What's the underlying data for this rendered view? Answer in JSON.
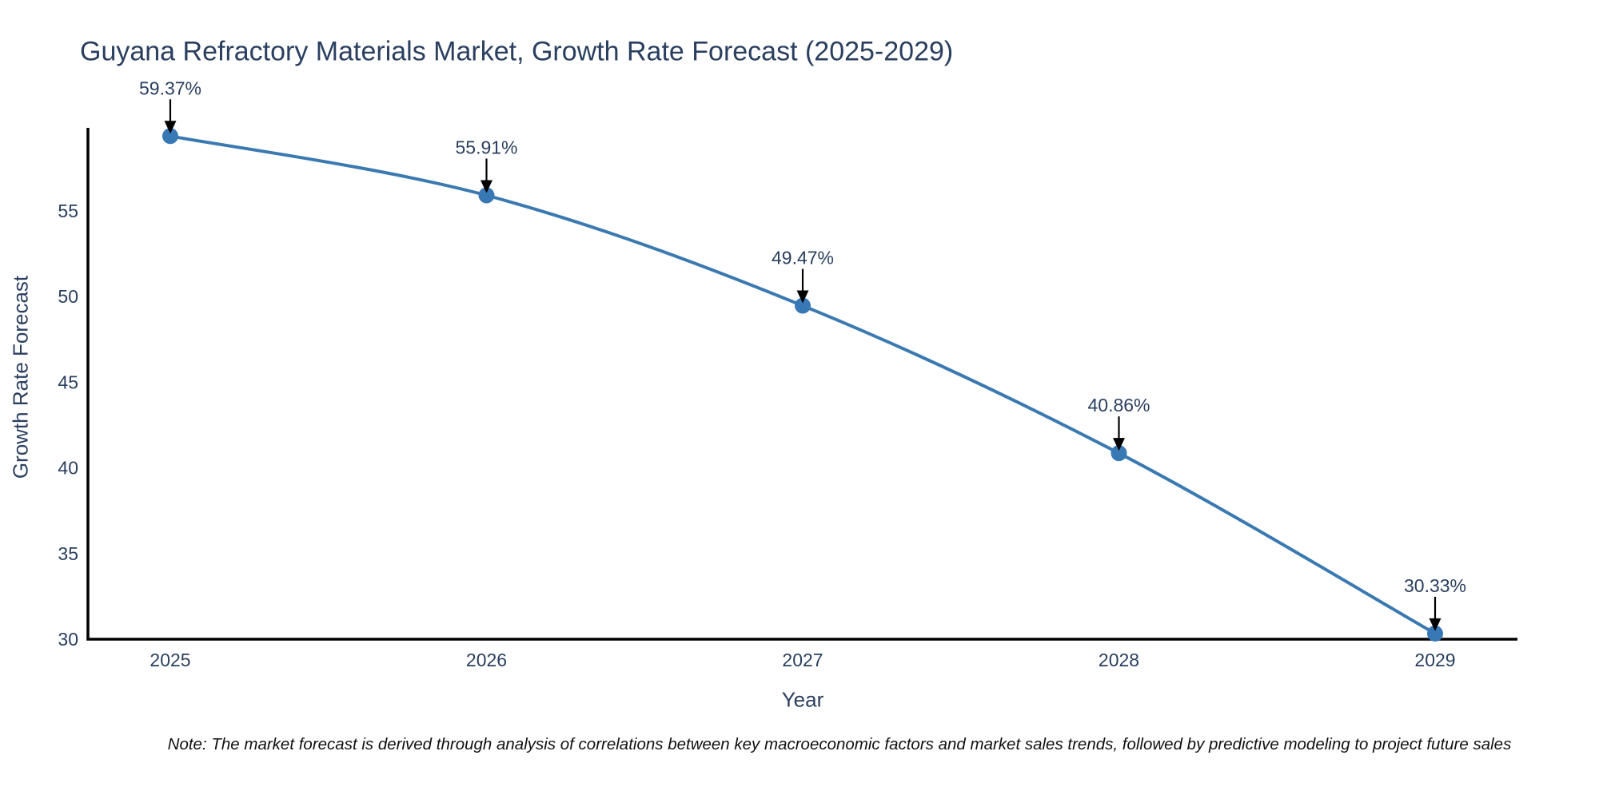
{
  "chart_data": {
    "type": "line",
    "title": "Guyana Refractory Materials Market, Growth Rate Forecast (2025-2029)",
    "xlabel": "Year",
    "ylabel": "Growth Rate Forecast",
    "x": [
      2025,
      2026,
      2027,
      2028,
      2029
    ],
    "series": [
      {
        "name": "Growth Rate Forecast",
        "values": [
          59.37,
          55.91,
          49.47,
          40.86,
          30.33
        ],
        "point_labels": [
          "59.37%",
          "55.91%",
          "49.47%",
          "40.86%",
          "30.33%"
        ]
      }
    ],
    "yticks": [
      30,
      35,
      40,
      45,
      50,
      55
    ],
    "ylim": [
      30,
      59.85
    ],
    "line_shape": "spline",
    "grid": false,
    "legend_position": "none",
    "note": "Note: The market forecast is derived through analysis of correlations between key macroeconomic factors and market sales trends, followed by predictive modeling to project future sales",
    "colors": {
      "line": "#3b79b1",
      "marker": "#3878b4",
      "axis_line": "#000000",
      "chart_text": "#2a3f5f",
      "annotation_arrow": "#000000",
      "note_text": "#111111",
      "background": "#ffffff"
    }
  }
}
